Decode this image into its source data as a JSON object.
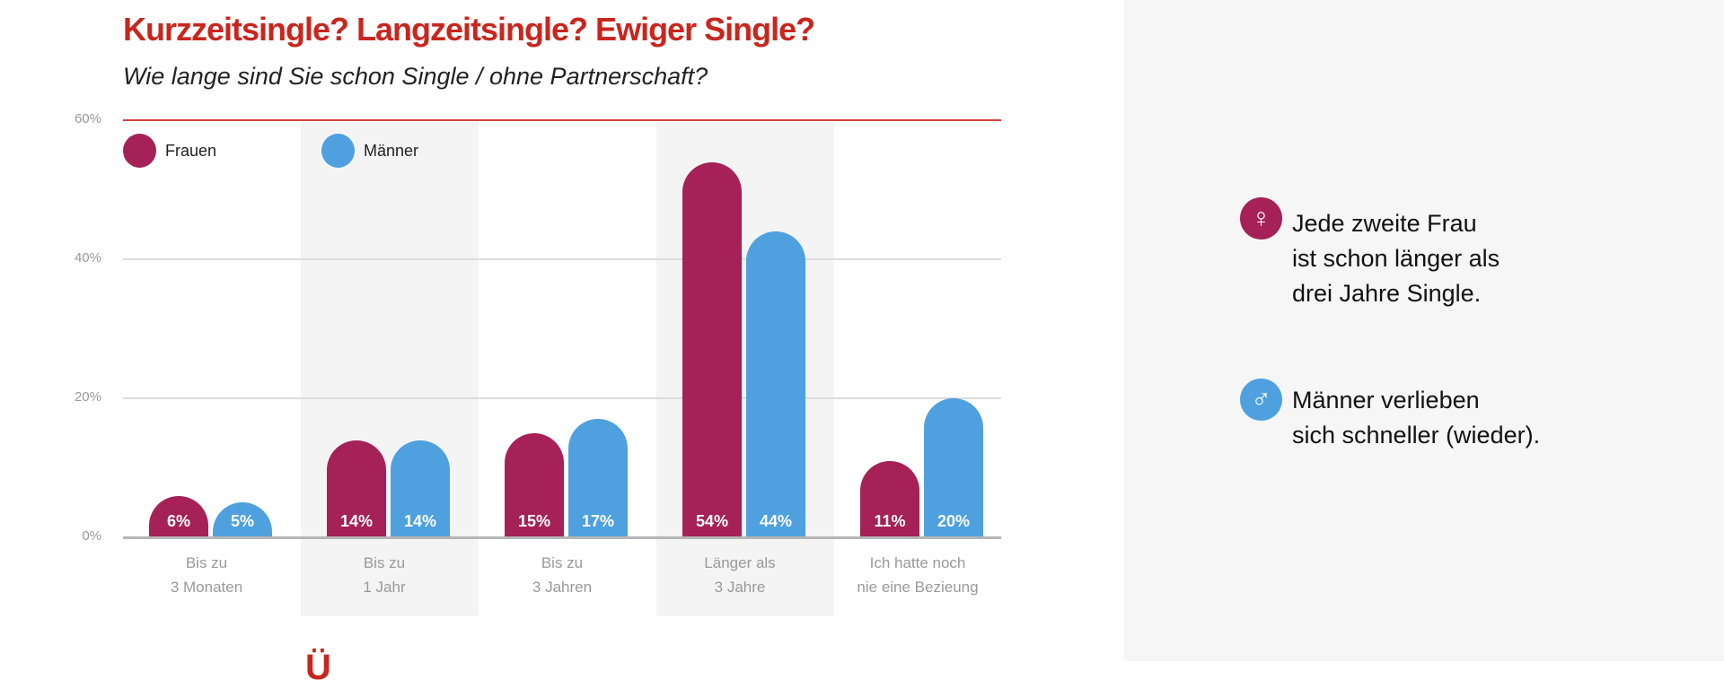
{
  "chart_data": {
    "type": "bar",
    "title": "Kurzzeitsingle? Langzeitsingle? Ewiger Single?",
    "subtitle": "Wie lange sind Sie schon Single / ohne Partnerschaft?",
    "categories": [
      [
        "Bis zu",
        "3 Monaten"
      ],
      [
        "Bis zu",
        "1 Jahr"
      ],
      [
        "Bis zu",
        "3 Jahren"
      ],
      [
        "Länger als",
        "3 Jahre"
      ],
      [
        "Ich hatte noch",
        "nie eine Bezieung"
      ]
    ],
    "series": [
      {
        "name": "Frauen",
        "color": "#a52157",
        "values": [
          6,
          14,
          15,
          54,
          11
        ],
        "labels": [
          "6%",
          "14%",
          "15%",
          "54%",
          "11%"
        ]
      },
      {
        "name": "Männer",
        "color": "#4ea1de",
        "values": [
          5,
          14,
          17,
          44,
          20
        ],
        "labels": [
          "5%",
          "14%",
          "17%",
          "44%",
          "20%"
        ]
      }
    ],
    "yticks": [
      "0%",
      "20%",
      "40%",
      "60%"
    ],
    "ylim": [
      0,
      60
    ],
    "grid": true,
    "legend": "top-left"
  },
  "notes": [
    {
      "icon": "female-symbol-icon",
      "glyph": "♀",
      "color": "#a52157",
      "lines": [
        "Jede zweite Frau",
        "ist schon länger als",
        "drei Jahre Single."
      ]
    },
    {
      "icon": "male-symbol-icon",
      "glyph": "♂",
      "color": "#4ea1de",
      "lines": [
        "Männer verlieben",
        "sich schneller (wieder)."
      ]
    }
  ],
  "cutoff_text": "Ü"
}
